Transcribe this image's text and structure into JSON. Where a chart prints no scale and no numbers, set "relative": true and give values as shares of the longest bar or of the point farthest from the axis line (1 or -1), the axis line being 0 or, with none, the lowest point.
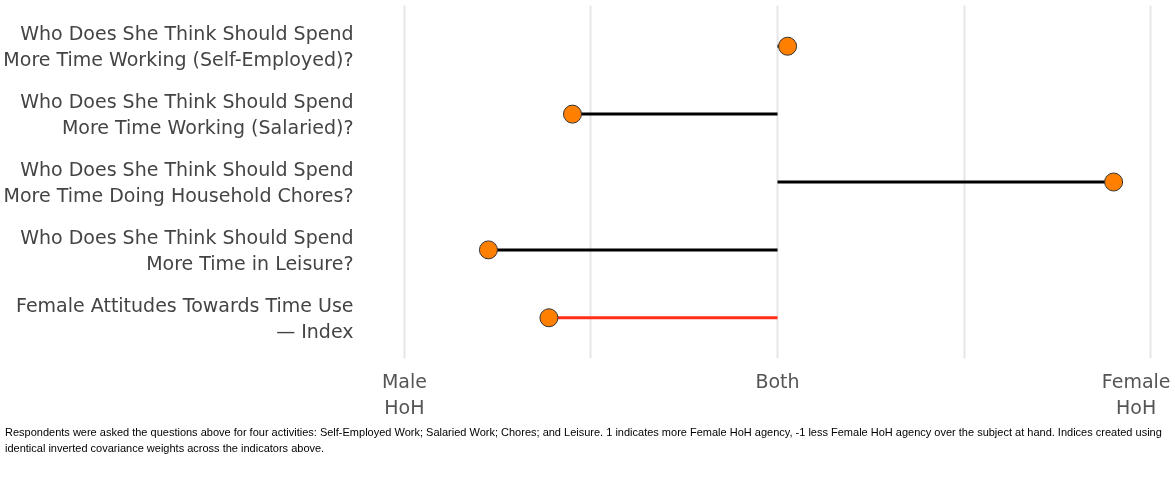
{
  "chart_data": {
    "type": "lollipop",
    "orientation": "horizontal",
    "relative": true,
    "categories": [
      "Who Does She Think Should Spend More Time Working (Self-Employed)?",
      "Who Does She Think Should Spend More Time Working (Salaried)?",
      "Who Does She Think Should Spend More Time Doing Household Chores?",
      "Who Does She Think Should Spend More Time in Leisure?",
      "Female Attitudes Towards Time Use — Index"
    ],
    "colors": [
      "#000000",
      "#000000",
      "#000000",
      "#000000",
      "#ff2d1a"
    ],
    "series": [
      {
        "color": "#ff7f00",
        "values": [
          0.03,
          -0.61,
          1,
          -0.86,
          -0.68
        ]
      }
    ],
    "grid": "x",
    "marker": "circle",
    "annotations": [
      "Male HoH",
      "Both",
      "Female HoH",
      "Respondents were asked the questions above for four activities: Self-Employed Work; Salaried Work; Chores; and Leisure. 1 indicates more Female HoH agency, -1 less Female HoH agency over the subject at hand. Indices created using identical inverted covariance weights across the indicators above."
    ]
  }
}
